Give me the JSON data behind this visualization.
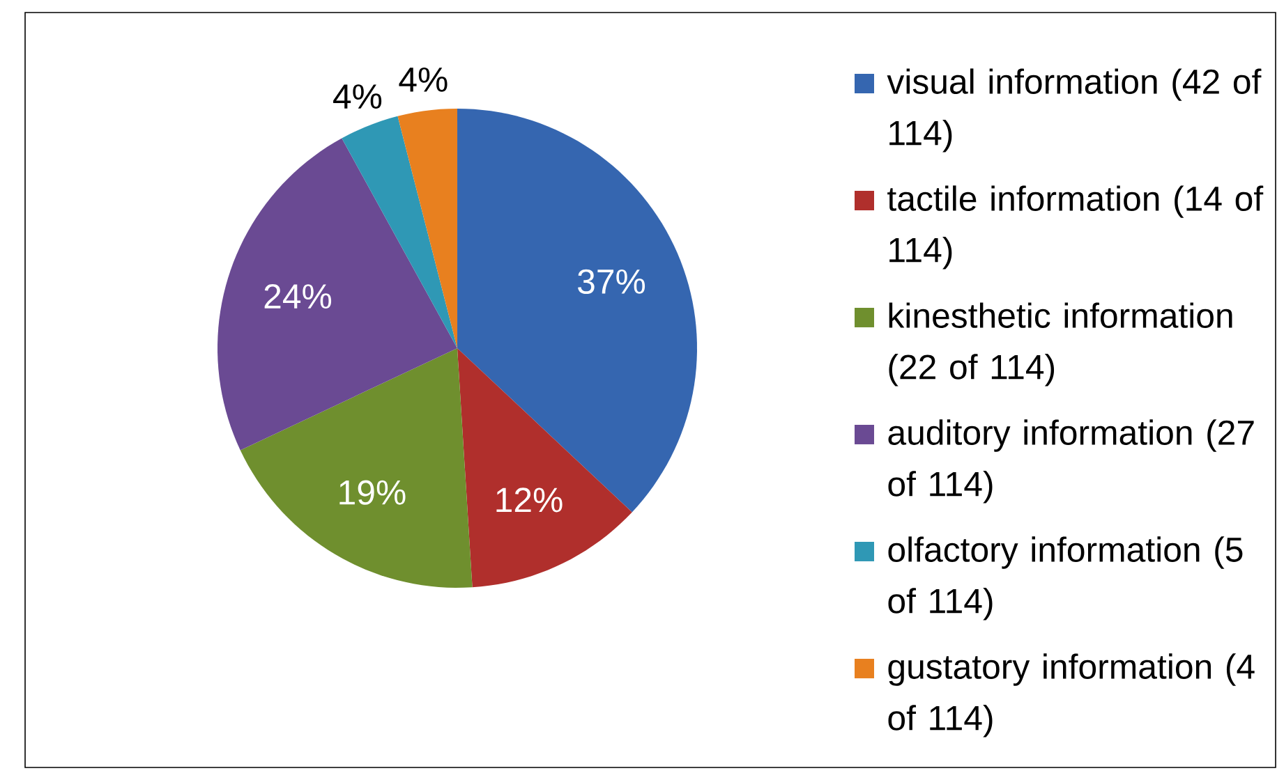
{
  "chart_data": {
    "type": "pie",
    "categories": [
      "visual information (42 of 114)",
      "tactile information (14 of 114)",
      "kinesthetic information (22 of 114)",
      "auditory information (27 of 114)",
      "olfactory information (5 of 114)",
      "gustatory information (4 of 114)"
    ],
    "values": [
      37,
      12,
      19,
      24,
      4,
      4
    ],
    "value_labels": [
      "37%",
      "12%",
      "19%",
      "24%",
      "4%",
      "4%"
    ],
    "colors": [
      "#3566b0",
      "#b02f2c",
      "#6f8f2e",
      "#6a4a93",
      "#2f98b5",
      "#e8801f"
    ],
    "legend": "right"
  }
}
